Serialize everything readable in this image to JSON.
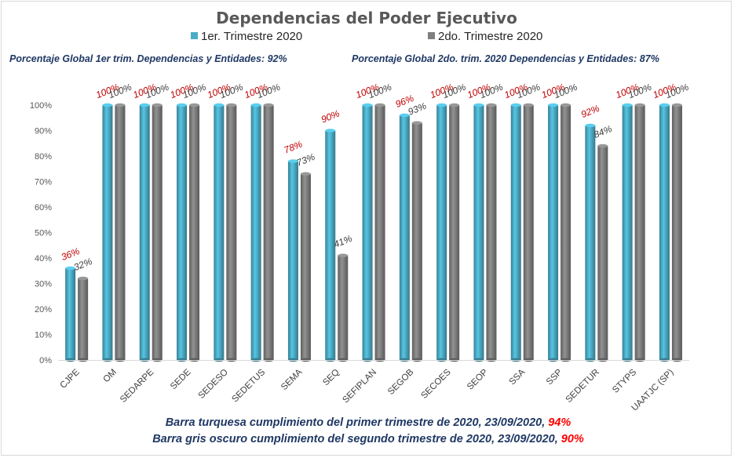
{
  "chart_data": {
    "type": "bar",
    "title": "Dependencias del Poder Ejecutivo",
    "categories": [
      "CJPE",
      "OM",
      "SEDARPE",
      "SEDE",
      "SEDESO",
      "SEDETUS",
      "SEMA",
      "SEQ",
      "SEFIPLAN",
      "SEGOB",
      "SECOES",
      "SEOP",
      "SSA",
      "SSP",
      "SEDETUR",
      "STYPS",
      "UAATJC (SP)"
    ],
    "series": [
      {
        "name": "1er. Trimestre 2020",
        "color": "#4bacc6",
        "values": [
          36,
          100,
          100,
          100,
          100,
          100,
          78,
          90,
          100,
          96,
          100,
          100,
          100,
          100,
          92,
          100,
          100
        ],
        "labels": [
          "36%",
          "100%",
          "100%",
          "100%",
          "100%",
          "100%",
          "78%",
          "90%",
          "100%",
          "96%",
          "100%",
          "100%",
          "100%",
          "100%",
          "92%",
          "100%",
          "100%"
        ]
      },
      {
        "name": "2do. Trimestre 2020",
        "color": "#7f7f7f",
        "values": [
          32,
          100,
          100,
          100,
          100,
          100,
          73,
          41,
          100,
          93,
          100,
          100,
          100,
          100,
          84,
          100,
          100
        ],
        "labels": [
          "32%",
          "100%",
          "100%",
          "100%",
          "100%",
          "100%",
          "73%",
          "41%",
          "100%",
          "93%",
          "100%",
          "100%",
          "100%",
          "100%",
          "84%",
          "100%",
          "100%"
        ]
      }
    ],
    "ylim": [
      0,
      100
    ],
    "yticks": [
      "0%",
      "10%",
      "20%",
      "30%",
      "40%",
      "50%",
      "60%",
      "70%",
      "80%",
      "90%",
      "100%"
    ],
    "legend_position": "top",
    "grid": false,
    "annotations": {
      "global1": "Porcentaje Global 1er trim. Dependencias y Entidades: 92%",
      "global2": "Porcentaje Global  2do. trim. 2020 Dependencias y Entidades: 87%",
      "note1_text": "Barra turquesa cumplimiento del primer trimestre de 2020, 23/09/2020, ",
      "note1_value": "94%",
      "note2_text": "Barra gris oscuro cumplimiento del segundo trimestre de 2020, 23/09/2020, ",
      "note2_value": "90%"
    }
  }
}
